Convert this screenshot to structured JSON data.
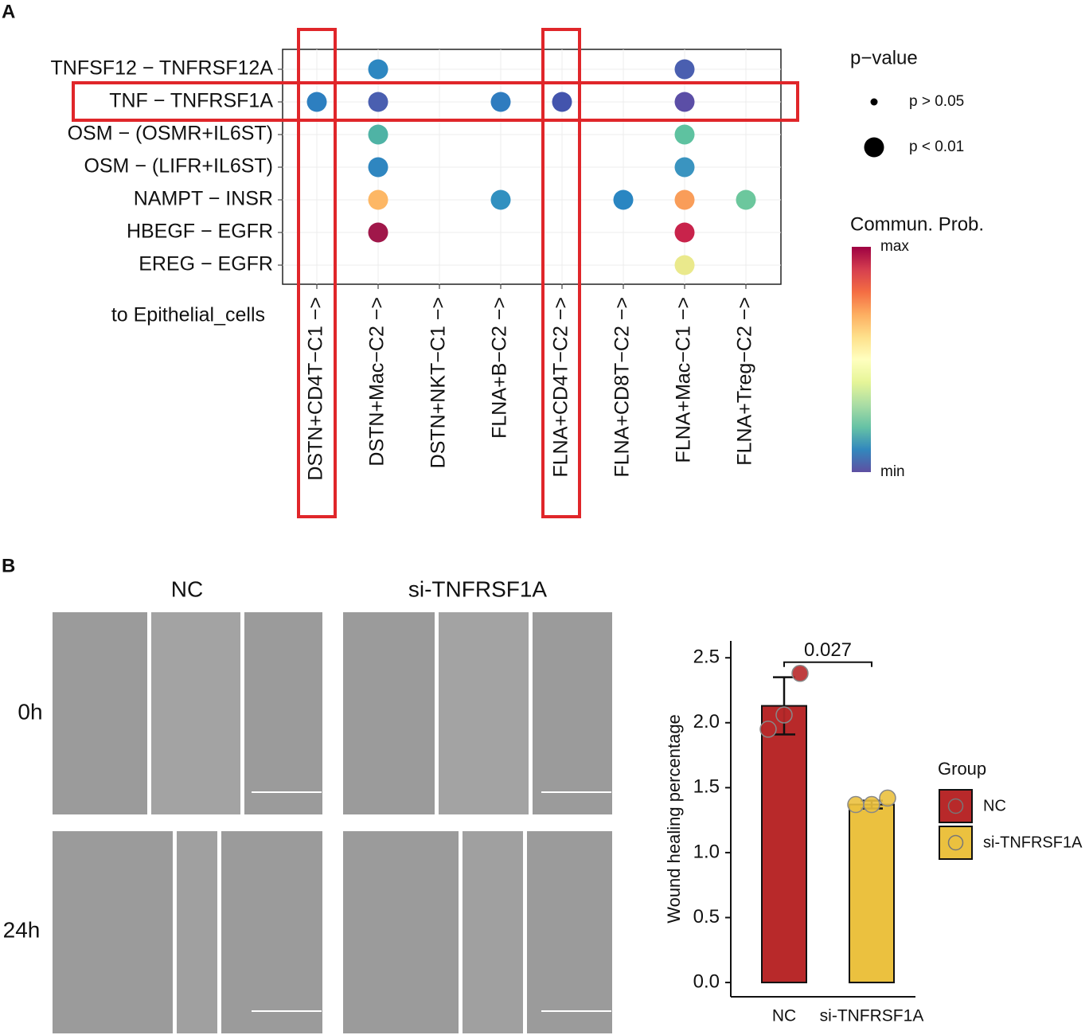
{
  "panel_labels": [
    "A",
    "B"
  ],
  "micrographs": {
    "conditions": [
      "NC",
      "si-TNFRSF1A"
    ],
    "times": [
      "0h",
      "24h"
    ]
  },
  "chart_data": [
    {
      "type": "dot",
      "rows": [
        "TNFSF12 − TNFRSF12A",
        "TNF − TNFRSF1A",
        "OSM − (OSMR+IL6ST)",
        "OSM − (LIFR+IL6ST)",
        "NAMPT − INSR",
        "HBEGF − EGFR",
        "EREG − EGFR"
      ],
      "columns": [
        "DSTN+CD4T−C1 −>",
        "DSTN+Mac−C2 −>",
        "DSTN+NKT−C1 −>",
        "FLNA+B−C2 −>",
        "FLNA+CD4T−C2 −>",
        "FLNA+CD8T−C2 −>",
        "FLNA+Mac−C1 −>",
        "FLNA+Treg−C2 −>"
      ],
      "x_axis_label": "to Epithelial_cells",
      "colors": [
        [
          null,
          "#2d87c1",
          null,
          null,
          null,
          null,
          "#4a5fb0",
          null
        ],
        [
          "#2d7fc0",
          "#4a5fb0",
          null,
          "#2f7cbf",
          "#4354ad",
          null,
          "#5b4ea6",
          null
        ],
        [
          null,
          "#4fb3a5",
          null,
          null,
          null,
          null,
          "#5ec2a0",
          null
        ],
        [
          null,
          "#2f86c0",
          null,
          null,
          null,
          null,
          "#3a94c0",
          null
        ],
        [
          null,
          "#fdb765",
          null,
          "#3190c0",
          null,
          "#2a86c2",
          "#f99d59",
          "#6cc79d"
        ],
        [
          null,
          "#a0174a",
          null,
          null,
          null,
          null,
          "#c8234b",
          null
        ],
        [
          null,
          null,
          null,
          null,
          null,
          null,
          "#eae98c",
          null
        ]
      ],
      "size_legend": {
        "title": "p−value",
        "entries": [
          "p > 0.05",
          "p < 0.01"
        ]
      },
      "color_legend": {
        "title": "Commun. Prob.",
        "max_label": "max",
        "min_label": "min",
        "colors": [
          "#9e0142",
          "#d53e4f",
          "#f46d43",
          "#fdae61",
          "#fee08b",
          "#ffffbf",
          "#e6f598",
          "#abdda4",
          "#66c2a5",
          "#3288bd",
          "#5e4fa2"
        ]
      }
    },
    {
      "type": "bar",
      "ylabel": "Wound healing percentage",
      "categories": [
        "NC",
        "si-TNFRSF1A"
      ],
      "values": [
        2.13,
        1.37
      ],
      "errors": [
        0.22,
        0.03
      ],
      "points": [
        [
          1.95,
          2.06,
          2.38
        ],
        [
          1.37,
          1.37,
          1.42
        ]
      ],
      "colors": [
        "#b8292a",
        "#ebc13f"
      ],
      "ylim": [
        -0.11,
        2.63
      ],
      "yticks": [
        {
          "value": 0,
          "label": "0.0"
        },
        {
          "value": 0.5,
          "label": "0.5"
        },
        {
          "value": 1,
          "label": "1.0"
        },
        {
          "value": 1.5,
          "label": "1.5"
        },
        {
          "value": 2,
          "label": "2.0"
        },
        {
          "value": 2.5,
          "label": "2.5"
        }
      ],
      "annotation": "0.027",
      "legend_title": "Group"
    }
  ]
}
